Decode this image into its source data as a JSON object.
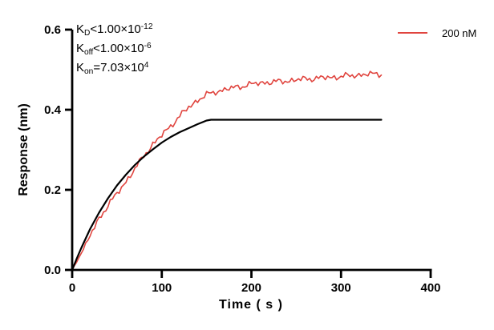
{
  "figure": {
    "background": "#ffffff"
  },
  "legend": {
    "label": "200 nM",
    "line_color": "#e0453f"
  },
  "annotations": {
    "lines": [
      {
        "name": "kd-annotation",
        "segments": [
          {
            "t": "K"
          },
          {
            "t": "D",
            "style": "sub"
          },
          {
            "t": "<1.00×10"
          },
          {
            "t": "-12",
            "style": "sup"
          }
        ]
      },
      {
        "name": "koff-annotation",
        "segments": [
          {
            "t": "K"
          },
          {
            "t": "off",
            "style": "sub"
          },
          {
            "t": "<1.00×10"
          },
          {
            "t": "-6",
            "style": "sup"
          }
        ]
      },
      {
        "name": "kon-annotation",
        "segments": [
          {
            "t": "K"
          },
          {
            "t": "on",
            "style": "sub"
          },
          {
            "t": "=7.03×10"
          },
          {
            "t": "4",
            "style": "sup"
          }
        ]
      }
    ]
  },
  "chart_data": {
    "type": "line",
    "title": "",
    "xlabel": "Time ( s )",
    "ylabel": "Response (nm)",
    "xlim": [
      0,
      400
    ],
    "ylim": [
      0,
      0.6
    ],
    "x_ticks": [
      0,
      100,
      200,
      300,
      400
    ],
    "y_ticks": [
      "0.0",
      "0.2",
      "0.4",
      "0.6"
    ],
    "grid": false,
    "legend_position": "top-right",
    "axis_color": "#000000",
    "series": [
      {
        "name": "200 nM",
        "role": "measured-sensorgram",
        "color": "#e0453f",
        "line_width": 1.6,
        "noise_amplitude": 0.007,
        "points": [
          [
            0,
            0
          ],
          [
            10,
            0.042
          ],
          [
            20,
            0.085
          ],
          [
            30,
            0.128
          ],
          [
            40,
            0.162
          ],
          [
            50,
            0.19
          ],
          [
            60,
            0.221
          ],
          [
            70,
            0.252
          ],
          [
            80,
            0.285
          ],
          [
            90,
            0.314
          ],
          [
            100,
            0.336
          ],
          [
            110,
            0.36
          ],
          [
            120,
            0.384
          ],
          [
            130,
            0.406
          ],
          [
            140,
            0.424
          ],
          [
            150,
            0.437
          ],
          [
            160,
            0.445
          ],
          [
            170,
            0.45
          ],
          [
            180,
            0.455
          ],
          [
            190,
            0.459
          ],
          [
            200,
            0.464
          ],
          [
            215,
            0.468
          ],
          [
            230,
            0.47
          ],
          [
            245,
            0.473
          ],
          [
            260,
            0.477
          ],
          [
            275,
            0.479
          ],
          [
            290,
            0.481
          ],
          [
            305,
            0.484
          ],
          [
            320,
            0.487
          ],
          [
            335,
            0.489
          ],
          [
            345,
            0.49
          ]
        ]
      },
      {
        "name": "fit",
        "role": "fitted-curve",
        "color": "#000000",
        "line_width": 2.2,
        "noise_amplitude": 0,
        "points": [
          [
            0,
            0
          ],
          [
            5,
            0.028
          ],
          [
            10,
            0.054
          ],
          [
            20,
            0.102
          ],
          [
            30,
            0.143
          ],
          [
            40,
            0.179
          ],
          [
            50,
            0.211
          ],
          [
            60,
            0.238
          ],
          [
            70,
            0.262
          ],
          [
            80,
            0.283
          ],
          [
            90,
            0.301
          ],
          [
            100,
            0.318
          ],
          [
            110,
            0.332
          ],
          [
            120,
            0.344
          ],
          [
            130,
            0.354
          ],
          [
            140,
            0.364
          ],
          [
            150,
            0.373
          ],
          [
            155,
            0.375
          ],
          [
            345,
            0.375
          ]
        ]
      }
    ]
  }
}
